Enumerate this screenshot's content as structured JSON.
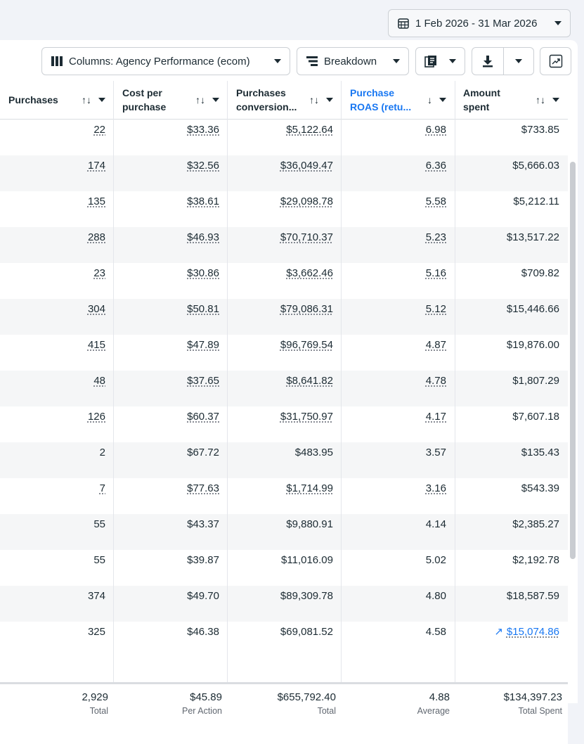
{
  "date_range": "1 Feb 2026 - 31 Mar 2026",
  "toolbar": {
    "columns_label": "Columns: Agency Performance (ecom)",
    "breakdown_label": "Breakdown"
  },
  "headers": [
    {
      "line1": "Purchases",
      "line2": "",
      "sort": "↑↓"
    },
    {
      "line1": "Cost per",
      "line2": "purchase",
      "sort": "↑↓"
    },
    {
      "line1": "Purchases",
      "line2": "conversion...",
      "sort": "↑↓"
    },
    {
      "line1": "Purchase",
      "line2": "ROAS (retu...",
      "sort": "↓"
    },
    {
      "line1": "Amount",
      "line2": "spent",
      "sort": "↑↓"
    }
  ],
  "rows": [
    {
      "purchases": "22",
      "cpp": "$33.36",
      "conv": "$5,122.64",
      "roas": "6.98",
      "spent": "$733.85",
      "dotted": true
    },
    {
      "purchases": "174",
      "cpp": "$32.56",
      "conv": "$36,049.47",
      "roas": "6.36",
      "spent": "$5,666.03",
      "dotted": true
    },
    {
      "purchases": "135",
      "cpp": "$38.61",
      "conv": "$29,098.78",
      "roas": "5.58",
      "spent": "$5,212.11",
      "dotted": true
    },
    {
      "purchases": "288",
      "cpp": "$46.93",
      "conv": "$70,710.37",
      "roas": "5.23",
      "spent": "$13,517.22",
      "dotted": true
    },
    {
      "purchases": "23",
      "cpp": "$30.86",
      "conv": "$3,662.46",
      "roas": "5.16",
      "spent": "$709.82",
      "dotted": true
    },
    {
      "purchases": "304",
      "cpp": "$50.81",
      "conv": "$79,086.31",
      "roas": "5.12",
      "spent": "$15,446.66",
      "dotted": true
    },
    {
      "purchases": "415",
      "cpp": "$47.89",
      "conv": "$96,769.54",
      "roas": "4.87",
      "spent": "$19,876.00",
      "dotted": true
    },
    {
      "purchases": "48",
      "cpp": "$37.65",
      "conv": "$8,641.82",
      "roas": "4.78",
      "spent": "$1,807.29",
      "dotted": true
    },
    {
      "purchases": "126",
      "cpp": "$60.37",
      "conv": "$31,750.97",
      "roas": "4.17",
      "spent": "$7,607.18",
      "dotted": true
    },
    {
      "purchases": "2",
      "cpp": "$67.72",
      "conv": "$483.95",
      "roas": "3.57",
      "spent": "$135.43",
      "dotted": false
    },
    {
      "purchases": "7",
      "cpp": "$77.63",
      "conv": "$1,714.99",
      "roas": "3.16",
      "spent": "$543.39",
      "dotted": true
    },
    {
      "purchases": "55",
      "cpp": "$43.37",
      "conv": "$9,880.91",
      "roas": "4.14",
      "spent": "$2,385.27",
      "dotted": false
    },
    {
      "purchases": "55",
      "cpp": "$39.87",
      "conv": "$11,016.09",
      "roas": "5.02",
      "spent": "$2,192.78",
      "dotted": false
    },
    {
      "purchases": "374",
      "cpp": "$49.70",
      "conv": "$89,309.78",
      "roas": "4.80",
      "spent": "$18,587.59",
      "dotted": false
    },
    {
      "purchases": "325",
      "cpp": "$46.38",
      "conv": "$69,081.52",
      "roas": "4.58",
      "spent": "$15,074.86",
      "dotted": false,
      "spent_link": true
    }
  ],
  "totals": [
    {
      "value": "2,929",
      "label": "Total"
    },
    {
      "value": "$45.89",
      "label": "Per Action"
    },
    {
      "value": "$655,792.40",
      "label": "Total"
    },
    {
      "value": "4.88",
      "label": "Average"
    },
    {
      "value": "$134,397.23",
      "label": "Total Spent"
    }
  ],
  "colors": {
    "accent": "#1877f2",
    "text": "#1c2b33",
    "muted": "#606770"
  }
}
